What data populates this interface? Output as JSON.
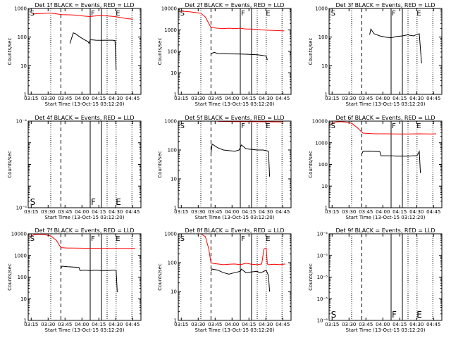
{
  "figure": {
    "x_tick_labels": [
      "03:15",
      "03:30",
      "03:45",
      "04:00",
      "04:15",
      "04:30",
      "04:45"
    ],
    "xlabel": "Start Time (13-Oct-15 03:12:20)",
    "ylabel": "Counts/sec",
    "colors": {
      "events": "#000000",
      "lld": "#ff0000",
      "frame": "#000000"
    }
  },
  "chart_data": [
    {
      "type": "line",
      "title": "Det 1f BLACK = Events, RED = LLD",
      "x_unit": "minutes after 03:12:20",
      "xlim": [
        0,
        100
      ],
      "yscale": "log",
      "ylim": [
        1,
        1000
      ],
      "y_tick_labels": [
        "1",
        "10",
        "100",
        "1000"
      ],
      "vlines": {
        "dotted": [
          20,
          70,
          78,
          92
        ],
        "dashed": [
          29
        ],
        "solid": [
          55,
          65
        ]
      },
      "markers": [
        {
          "label": "S",
          "x": 1
        },
        {
          "label": "F",
          "x": 55
        },
        {
          "label": "E",
          "x": 77
        }
      ],
      "series": [
        {
          "color": "red",
          "x": [
            4,
            10,
            20,
            30,
            40,
            50,
            55,
            58,
            62,
            67,
            72,
            77,
            82,
            88,
            93
          ],
          "y": [
            640,
            660,
            690,
            610,
            590,
            540,
            520,
            540,
            560,
            555,
            540,
            520,
            480,
            440,
            420
          ]
        },
        {
          "color": "black",
          "x": [
            37,
            40,
            42,
            46,
            50,
            53,
            54,
            55,
            57,
            60,
            65,
            70,
            75,
            77,
            78
          ],
          "y": [
            60,
            140,
            130,
            100,
            80,
            70,
            60,
            80,
            80,
            78,
            77,
            78,
            78,
            75,
            7
          ]
        }
      ]
    },
    {
      "type": "line",
      "title": "Det 2f BLACK = Events, RED = LLD",
      "x_unit": "minutes after 03:12:20",
      "xlim": [
        0,
        100
      ],
      "yscale": "log",
      "ylim": [
        1,
        10000
      ],
      "y_tick_labels": [
        "1",
        "10",
        "100",
        "1000",
        "10000"
      ],
      "vlines": {
        "dotted": [
          20,
          70,
          78,
          92
        ],
        "dashed": [
          29
        ],
        "solid": [
          55,
          65
        ]
      },
      "markers": [
        {
          "label": "S",
          "x": 1
        },
        {
          "label": "F",
          "x": 55
        },
        {
          "label": "E",
          "x": 77
        }
      ],
      "series": [
        {
          "color": "red",
          "x": [
            1,
            10,
            15,
            20,
            24,
            29,
            35,
            40,
            45,
            50,
            55,
            60,
            65,
            70,
            75,
            80,
            85,
            90,
            94
          ],
          "y": [
            7500,
            7000,
            6500,
            6000,
            4000,
            1300,
            1200,
            1150,
            1200,
            1150,
            1200,
            1100,
            1100,
            1050,
            1000,
            960,
            940,
            920,
            900
          ]
        },
        {
          "color": "black",
          "x": [
            29,
            32,
            35,
            40,
            45,
            50,
            55,
            60,
            65,
            70,
            75,
            78,
            79
          ],
          "y": [
            80,
            90,
            80,
            78,
            77,
            76,
            75,
            74,
            72,
            70,
            65,
            60,
            40
          ]
        }
      ]
    },
    {
      "type": "line",
      "title": "Det 3f BLACK = Events, RED = LLD",
      "x_unit": "minutes after 03:12:20",
      "xlim": [
        0,
        100
      ],
      "yscale": "log",
      "ylim": [
        1,
        1000
      ],
      "y_tick_labels": [
        "1",
        "10",
        "100",
        "1000"
      ],
      "vlines": {
        "dotted": [
          20,
          70,
          78,
          92
        ],
        "dashed": [
          29
        ],
        "solid": [
          55,
          65
        ]
      },
      "markers": [
        {
          "label": "S",
          "x": 1
        },
        {
          "label": "F",
          "x": 55
        },
        {
          "label": "E",
          "x": 77
        }
      ],
      "series": [
        {
          "color": "black",
          "x": [
            36,
            37,
            40,
            45,
            50,
            55,
            60,
            65,
            70,
            72,
            75,
            78,
            80,
            82
          ],
          "y": [
            120,
            190,
            130,
            110,
            100,
            95,
            105,
            110,
            120,
            115,
            110,
            125,
            130,
            12
          ]
        }
      ]
    },
    {
      "type": "line",
      "title": "Det 4f BLACK = Events, RED = LLD",
      "x_unit": "minutes after 03:12:20",
      "xlim": [
        0,
        100
      ],
      "yscale": "log",
      "ylim": [
        1e-05,
        0.0001
      ],
      "y_tick_labels": [
        "10⁻⁵",
        "",
        "",
        "",
        "10⁻⁴"
      ],
      "vlines": {
        "dotted": [
          20,
          70,
          78,
          92
        ],
        "dashed": [
          29
        ],
        "solid": [
          55,
          65
        ]
      },
      "markers": [
        {
          "label": "S",
          "x": 1
        },
        {
          "label": "F",
          "x": 55
        },
        {
          "label": "E",
          "x": 77
        }
      ],
      "series": []
    },
    {
      "type": "line",
      "title": "Det 5f BLACK = Events, RED = LLD",
      "x_unit": "minutes after 03:12:20",
      "xlim": [
        0,
        100
      ],
      "yscale": "log",
      "ylim": [
        1,
        1000
      ],
      "y_tick_labels": [
        "1",
        "10",
        "100",
        "1000"
      ],
      "vlines": {
        "dotted": [
          20,
          70,
          78,
          92
        ],
        "dashed": [
          29
        ],
        "solid": [
          55,
          65
        ]
      },
      "markers": [
        {
          "label": "S",
          "x": 1
        },
        {
          "label": "F",
          "x": 55
        },
        {
          "label": "E",
          "x": 77
        }
      ],
      "series": [
        {
          "color": "red",
          "x": [
            35,
            40,
            50,
            60,
            70,
            80,
            92
          ],
          "y": [
            980,
            970,
            960,
            955,
            950,
            945,
            940
          ]
        },
        {
          "color": "black",
          "x": [
            29,
            30,
            35,
            40,
            45,
            50,
            54,
            56,
            60,
            65,
            70,
            75,
            78,
            80,
            81
          ],
          "y": [
            80,
            160,
            120,
            100,
            95,
            90,
            100,
            150,
            110,
            105,
            100,
            100,
            95,
            90,
            12
          ]
        }
      ]
    },
    {
      "type": "line",
      "title": "Det 6f BLACK = Events, RED = LLD",
      "x_unit": "minutes after 03:12:20",
      "xlim": [
        0,
        100
      ],
      "yscale": "log",
      "ylim": [
        1,
        10000
      ],
      "y_tick_labels": [
        "1",
        "10",
        "100",
        "1000",
        "10000"
      ],
      "vlines": {
        "dotted": [
          20,
          70,
          78,
          92
        ],
        "dashed": [
          29
        ],
        "solid": [
          55,
          65
        ]
      },
      "markers": [
        {
          "label": "S",
          "x": 1
        },
        {
          "label": "F",
          "x": 55
        },
        {
          "label": "E",
          "x": 77
        }
      ],
      "series": [
        {
          "color": "red",
          "x": [
            1,
            5,
            10,
            15,
            20,
            25,
            28,
            30,
            35,
            40,
            50,
            60,
            70,
            80,
            90,
            95
          ],
          "y": [
            7000,
            9000,
            9500,
            9000,
            8000,
            5000,
            3500,
            2800,
            2700,
            2600,
            2600,
            2550,
            2550,
            2600,
            2550,
            2600
          ]
        },
        {
          "color": "black",
          "x": [
            29,
            30,
            35,
            40,
            45,
            46,
            50,
            55,
            60,
            65,
            70,
            75,
            78,
            80,
            81
          ],
          "y": [
            300,
            400,
            410,
            400,
            390,
            250,
            250,
            250,
            240,
            240,
            240,
            250,
            250,
            400,
            40
          ]
        }
      ]
    },
    {
      "type": "line",
      "title": "Det 7f BLACK = Events, RED = LLD",
      "x_unit": "minutes after 03:12:20",
      "xlim": [
        0,
        100
      ],
      "yscale": "log",
      "ylim": [
        1,
        10000
      ],
      "y_tick_labels": [
        "1",
        "10",
        "100",
        "1000",
        "10000"
      ],
      "vlines": {
        "dotted": [
          20,
          70,
          78,
          92
        ],
        "dashed": [
          29
        ],
        "solid": [
          55,
          65
        ]
      },
      "markers": [
        {
          "label": "S",
          "x": 1
        },
        {
          "label": "F",
          "x": 55
        },
        {
          "label": "E",
          "x": 77
        }
      ],
      "series": [
        {
          "color": "red",
          "x": [
            1,
            5,
            10,
            15,
            20,
            25,
            29,
            35,
            40,
            50,
            60,
            70,
            80,
            90,
            95
          ],
          "y": [
            7000,
            9000,
            9500,
            9000,
            8000,
            5000,
            2300,
            2200,
            2200,
            2150,
            2150,
            2100,
            2100,
            2100,
            2100
          ]
        },
        {
          "color": "black",
          "x": [
            29,
            30,
            35,
            40,
            45,
            46,
            50,
            55,
            60,
            65,
            70,
            75,
            78,
            79
          ],
          "y": [
            250,
            320,
            300,
            290,
            280,
            200,
            210,
            200,
            210,
            200,
            200,
            210,
            210,
            20
          ]
        }
      ]
    },
    {
      "type": "line",
      "title": "Det 8f BLACK = Events, RED = LLD",
      "x_unit": "minutes after 03:12:20",
      "xlim": [
        0,
        100
      ],
      "yscale": "log",
      "ylim": [
        1,
        1000
      ],
      "y_tick_labels": [
        "1",
        "10",
        "100",
        "1000"
      ],
      "vlines": {
        "dotted": [
          20,
          70,
          78,
          92
        ],
        "dashed": [
          29
        ],
        "solid": [
          55,
          65
        ]
      },
      "markers": [
        {
          "label": "S",
          "x": 1
        },
        {
          "label": "F",
          "x": 55
        },
        {
          "label": "E",
          "x": 77
        }
      ],
      "series": [
        {
          "color": "red",
          "x": [
            20,
            24,
            27,
            29,
            30,
            35,
            40,
            45,
            50,
            55,
            60,
            65,
            70,
            74,
            76,
            78,
            79,
            80,
            85,
            90,
            95
          ],
          "y": [
            1000,
            800,
            300,
            100,
            95,
            90,
            85,
            88,
            90,
            85,
            95,
            88,
            85,
            90,
            300,
            320,
            90,
            85,
            88,
            85,
            90
          ]
        },
        {
          "color": "black",
          "x": [
            29,
            30,
            35,
            40,
            45,
            50,
            55,
            56,
            60,
            65,
            70,
            72,
            75,
            78,
            80,
            81
          ],
          "y": [
            50,
            60,
            55,
            45,
            40,
            45,
            50,
            60,
            45,
            48,
            50,
            45,
            48,
            55,
            35,
            10
          ]
        }
      ]
    },
    {
      "type": "line",
      "title": "Det 9f BLACK = Events, RED = LLD",
      "x_unit": "minutes after 03:12:20",
      "xlim": [
        0,
        100
      ],
      "yscale": "log",
      "ylim": [
        1e-06,
        0.0001
      ],
      "y_tick_labels": [
        "10⁻⁶",
        "10⁻⁵",
        "10⁻⁵",
        "10⁻⁵",
        "10⁻⁴"
      ],
      "vlines": {
        "dotted": [
          20,
          70,
          78,
          92
        ],
        "dashed": [
          29
        ],
        "solid": [
          55,
          65
        ]
      },
      "markers": [
        {
          "label": "S",
          "x": 1
        },
        {
          "label": "F",
          "x": 55
        },
        {
          "label": "E",
          "x": 77
        }
      ],
      "series": []
    }
  ]
}
